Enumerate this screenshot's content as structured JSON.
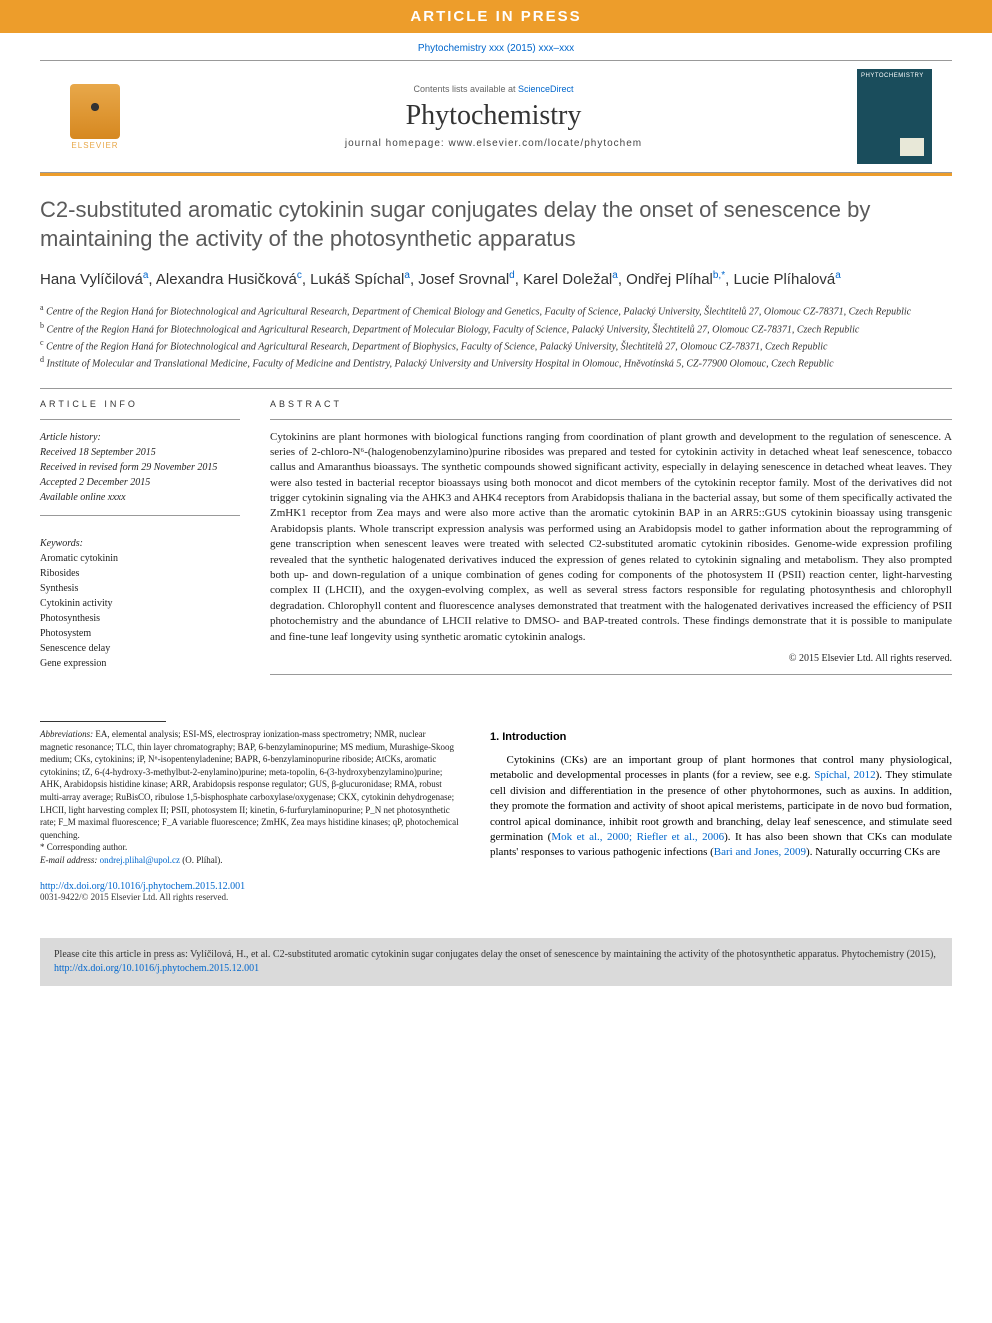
{
  "banner": {
    "article_in_press": "ARTICLE IN PRESS",
    "top_reference": "Phytochemistry xxx (2015) xxx–xxx"
  },
  "header": {
    "elsevier_label": "ELSEVIER",
    "contents_prefix": "Contents lists available at ",
    "contents_link": "ScienceDirect",
    "journal_name": "Phytochemistry",
    "homepage_label": "journal homepage: www.elsevier.com/locate/phytochem"
  },
  "article": {
    "title": "C2-substituted aromatic cytokinin sugar conjugates delay the onset of senescence by maintaining the activity of the photosynthetic apparatus",
    "authors_html": "Hana Vylíčilová<sup>a</sup>, Alexandra Husičková<sup>c</sup>, Lukáš Spíchal<sup>a</sup>, Josef Srovnal<sup>d</sup>, Karel Doležal<sup>a</sup>, Ondřej Plíhal<sup>b,*</sup>, Lucie Plíhalová<sup>a</sup>",
    "affiliations": [
      {
        "sup": "a",
        "text": "Centre of the Region Haná for Biotechnological and Agricultural Research, Department of Chemical Biology and Genetics, Faculty of Science, Palacký University, Šlechtitelů 27, Olomouc CZ-78371, Czech Republic"
      },
      {
        "sup": "b",
        "text": "Centre of the Region Haná for Biotechnological and Agricultural Research, Department of Molecular Biology, Faculty of Science, Palacký University, Šlechtitelů 27, Olomouc CZ-78371, Czech Republic"
      },
      {
        "sup": "c",
        "text": "Centre of the Region Haná for Biotechnological and Agricultural Research, Department of Biophysics, Faculty of Science, Palacký University, Šlechtitelů 27, Olomouc CZ-78371, Czech Republic"
      },
      {
        "sup": "d",
        "text": "Institute of Molecular and Translational Medicine, Faculty of Medicine and Dentistry, Palacký University and University Hospital in Olomouc, Hněvotínská 5, CZ-77900 Olomouc, Czech Republic"
      }
    ]
  },
  "info": {
    "header": "ARTICLE INFO",
    "history_label": "Article history:",
    "history": [
      "Received 18 September 2015",
      "Received in revised form 29 November 2015",
      "Accepted 2 December 2015",
      "Available online xxxx"
    ],
    "keywords_label": "Keywords:",
    "keywords": [
      "Aromatic cytokinin",
      "Ribosides",
      "Synthesis",
      "Cytokinin activity",
      "Photosynthesis",
      "Photosystem",
      "Senescence delay",
      "Gene expression"
    ]
  },
  "abstract": {
    "header": "ABSTRACT",
    "text": "Cytokinins are plant hormones with biological functions ranging from coordination of plant growth and development to the regulation of senescence. A series of 2-chloro-N⁶-(halogenobenzylamino)purine ribosides was prepared and tested for cytokinin activity in detached wheat leaf senescence, tobacco callus and Amaranthus bioassays. The synthetic compounds showed significant activity, especially in delaying senescence in detached wheat leaves. They were also tested in bacterial receptor bioassays using both monocot and dicot members of the cytokinin receptor family. Most of the derivatives did not trigger cytokinin signaling via the AHK3 and AHK4 receptors from Arabidopsis thaliana in the bacterial assay, but some of them specifically activated the ZmHK1 receptor from Zea mays and were also more active than the aromatic cytokinin BAP in an ARR5::GUS cytokinin bioassay using transgenic Arabidopsis plants. Whole transcript expression analysis was performed using an Arabidopsis model to gather information about the reprogramming of gene transcription when senescent leaves were treated with selected C2-substituted aromatic cytokinin ribosides. Genome-wide expression profiling revealed that the synthetic halogenated derivatives induced the expression of genes related to cytokinin signaling and metabolism. They also prompted both up- and down-regulation of a unique combination of genes coding for components of the photosystem II (PSII) reaction center, light-harvesting complex II (LHCII), and the oxygen-evolving complex, as well as several stress factors responsible for regulating photosynthesis and chlorophyll degradation. Chlorophyll content and fluorescence analyses demonstrated that treatment with the halogenated derivatives increased the efficiency of PSII photochemistry and the abundance of LHCII relative to DMSO- and BAP-treated controls. These findings demonstrate that it is possible to manipulate and fine-tune leaf longevity using synthetic aromatic cytokinin analogs.",
    "copyright": "© 2015 Elsevier Ltd. All rights reserved."
  },
  "intro": {
    "header": "1. Introduction",
    "text_parts": [
      "Cytokinins (CKs) are an important group of plant hormones that control many physiological, metabolic and developmental processes in plants (for a review, see e.g. ",
      "Spíchal, 2012",
      "). They stimulate cell division and differentiation in the presence of other phytohormones, such as auxins. In addition, they promote the formation and activity of shoot apical meristems, participate in de novo bud formation, control apical dominance, inhibit root growth and branching, delay leaf senescence, and stimulate seed germination (",
      "Mok et al., 2000; Riefler et al., 2006",
      "). It has also been shown that CKs can modulate plants' responses to various pathogenic infections (",
      "Bari and Jones, 2009",
      "). Naturally occurring CKs are"
    ]
  },
  "footnotes": {
    "abbreviations_label": "Abbreviations:",
    "abbreviations_text": " EA, elemental analysis; ESI-MS, electrospray ionization-mass spectrometry; NMR, nuclear magnetic resonance; TLC, thin layer chromatography; BAP, 6-benzylaminopurine; MS medium, Murashige-Skoog medium; CKs, cytokinins; iP, N⁶-isopentenyladenine; BAPR, 6-benzylaminopurine riboside; AtCKs, aromatic cytokinins; tZ, 6-(4-hydroxy-3-methylbut-2-enylamino)purine; meta-topolin, 6-(3-hydroxybenzylamino)purine; AHK, Arabidopsis histidine kinase; ARR, Arabidopsis response regulator; GUS, β-glucuronidase; RMA, robust multi-array average; RuBisCO, ribulose 1,5-bisphosphate carboxylase/oxygenase; CKX, cytokinin dehydrogenase; LHCII, light harvesting complex II; PSII, photosystem II; kinetin, 6-furfurylaminopurine; P_N net photosynthetic rate; F_M maximal fluorescence; F_A variable fluorescence; ZmHK, Zea mays histidine kinases; qP, photochemical quenching.",
    "corresponding_label": "* Corresponding author.",
    "email_label": "E-mail address: ",
    "email": "ondrej.plihal@upol.cz",
    "email_suffix": " (O. Plíhal).",
    "doi_url": "http://dx.doi.org/10.1016/j.phytochem.2015.12.001",
    "issn_line": "0031-9422/© 2015 Elsevier Ltd. All rights reserved."
  },
  "cite_box": {
    "text_prefix": "Please cite this article in press as: Vylíčilová, H., et al. C2-substituted aromatic cytokinin sugar conjugates delay the onset of senescence by maintaining the activity of the photosynthetic apparatus. Phytochemistry (2015), ",
    "link": "http://dx.doi.org/10.1016/j.phytochem.2015.12.001"
  },
  "colors": {
    "orange": "#ed9d2b",
    "link": "#0066cc",
    "gray_bg": "#dadada",
    "cover_bg": "#1a4d5c"
  }
}
